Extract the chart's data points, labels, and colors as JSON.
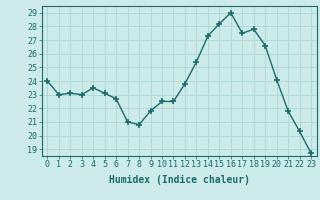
{
  "x": [
    0,
    1,
    2,
    3,
    4,
    5,
    6,
    7,
    8,
    9,
    10,
    11,
    12,
    13,
    14,
    15,
    16,
    17,
    18,
    19,
    20,
    21,
    22,
    23
  ],
  "y": [
    24.0,
    23.0,
    23.1,
    23.0,
    23.5,
    23.1,
    22.7,
    21.0,
    20.8,
    21.8,
    22.5,
    22.5,
    23.8,
    25.4,
    27.3,
    28.2,
    29.0,
    27.5,
    27.8,
    26.6,
    24.1,
    21.8,
    20.3,
    18.7
  ],
  "line_color": "#1a6b6b",
  "marker": "+",
  "marker_size": 4,
  "marker_linewidth": 1.2,
  "xlabel": "Humidex (Indice chaleur)",
  "ylabel": "",
  "xlim": [
    -0.5,
    23.5
  ],
  "ylim": [
    18.5,
    29.5
  ],
  "yticks": [
    19,
    20,
    21,
    22,
    23,
    24,
    25,
    26,
    27,
    28,
    29
  ],
  "xticks": [
    0,
    1,
    2,
    3,
    4,
    5,
    6,
    7,
    8,
    9,
    10,
    11,
    12,
    13,
    14,
    15,
    16,
    17,
    18,
    19,
    20,
    21,
    22,
    23
  ],
  "bg_color": "#cceae7",
  "grid_color": "#b0d8d4",
  "tick_color": "#1a6b6b",
  "label_color": "#1a6b6b",
  "xlabel_fontsize": 7,
  "tick_fontsize": 6
}
